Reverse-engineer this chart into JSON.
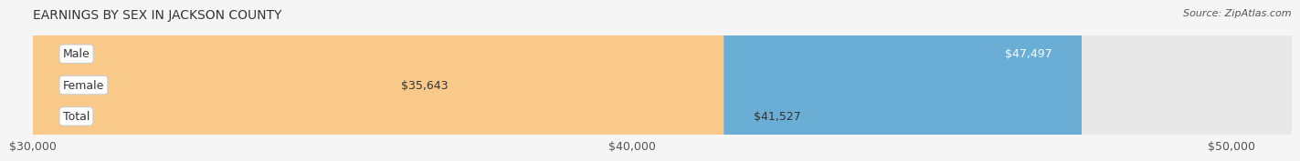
{
  "title": "EARNINGS BY SEX IN JACKSON COUNTY",
  "source": "Source: ZipAtlas.com",
  "categories": [
    "Male",
    "Female",
    "Total"
  ],
  "values": [
    47497,
    35643,
    41527
  ],
  "bar_colors": [
    "#6aaed6",
    "#f4a8c0",
    "#f9c98a"
  ],
  "label_colors": [
    "white",
    "#555555",
    "#555555"
  ],
  "xmin": 30000,
  "xmax": 51000,
  "xticks": [
    30000,
    40000,
    50000
  ],
  "xtick_labels": [
    "$30,000",
    "$40,000",
    "$50,000"
  ],
  "bar_height": 0.55,
  "background_color": "#f5f5f5",
  "bar_bg_color": "#e8e8e8",
  "title_fontsize": 10,
  "source_fontsize": 8,
  "label_fontsize": 9,
  "tick_fontsize": 9,
  "category_fontsize": 9
}
